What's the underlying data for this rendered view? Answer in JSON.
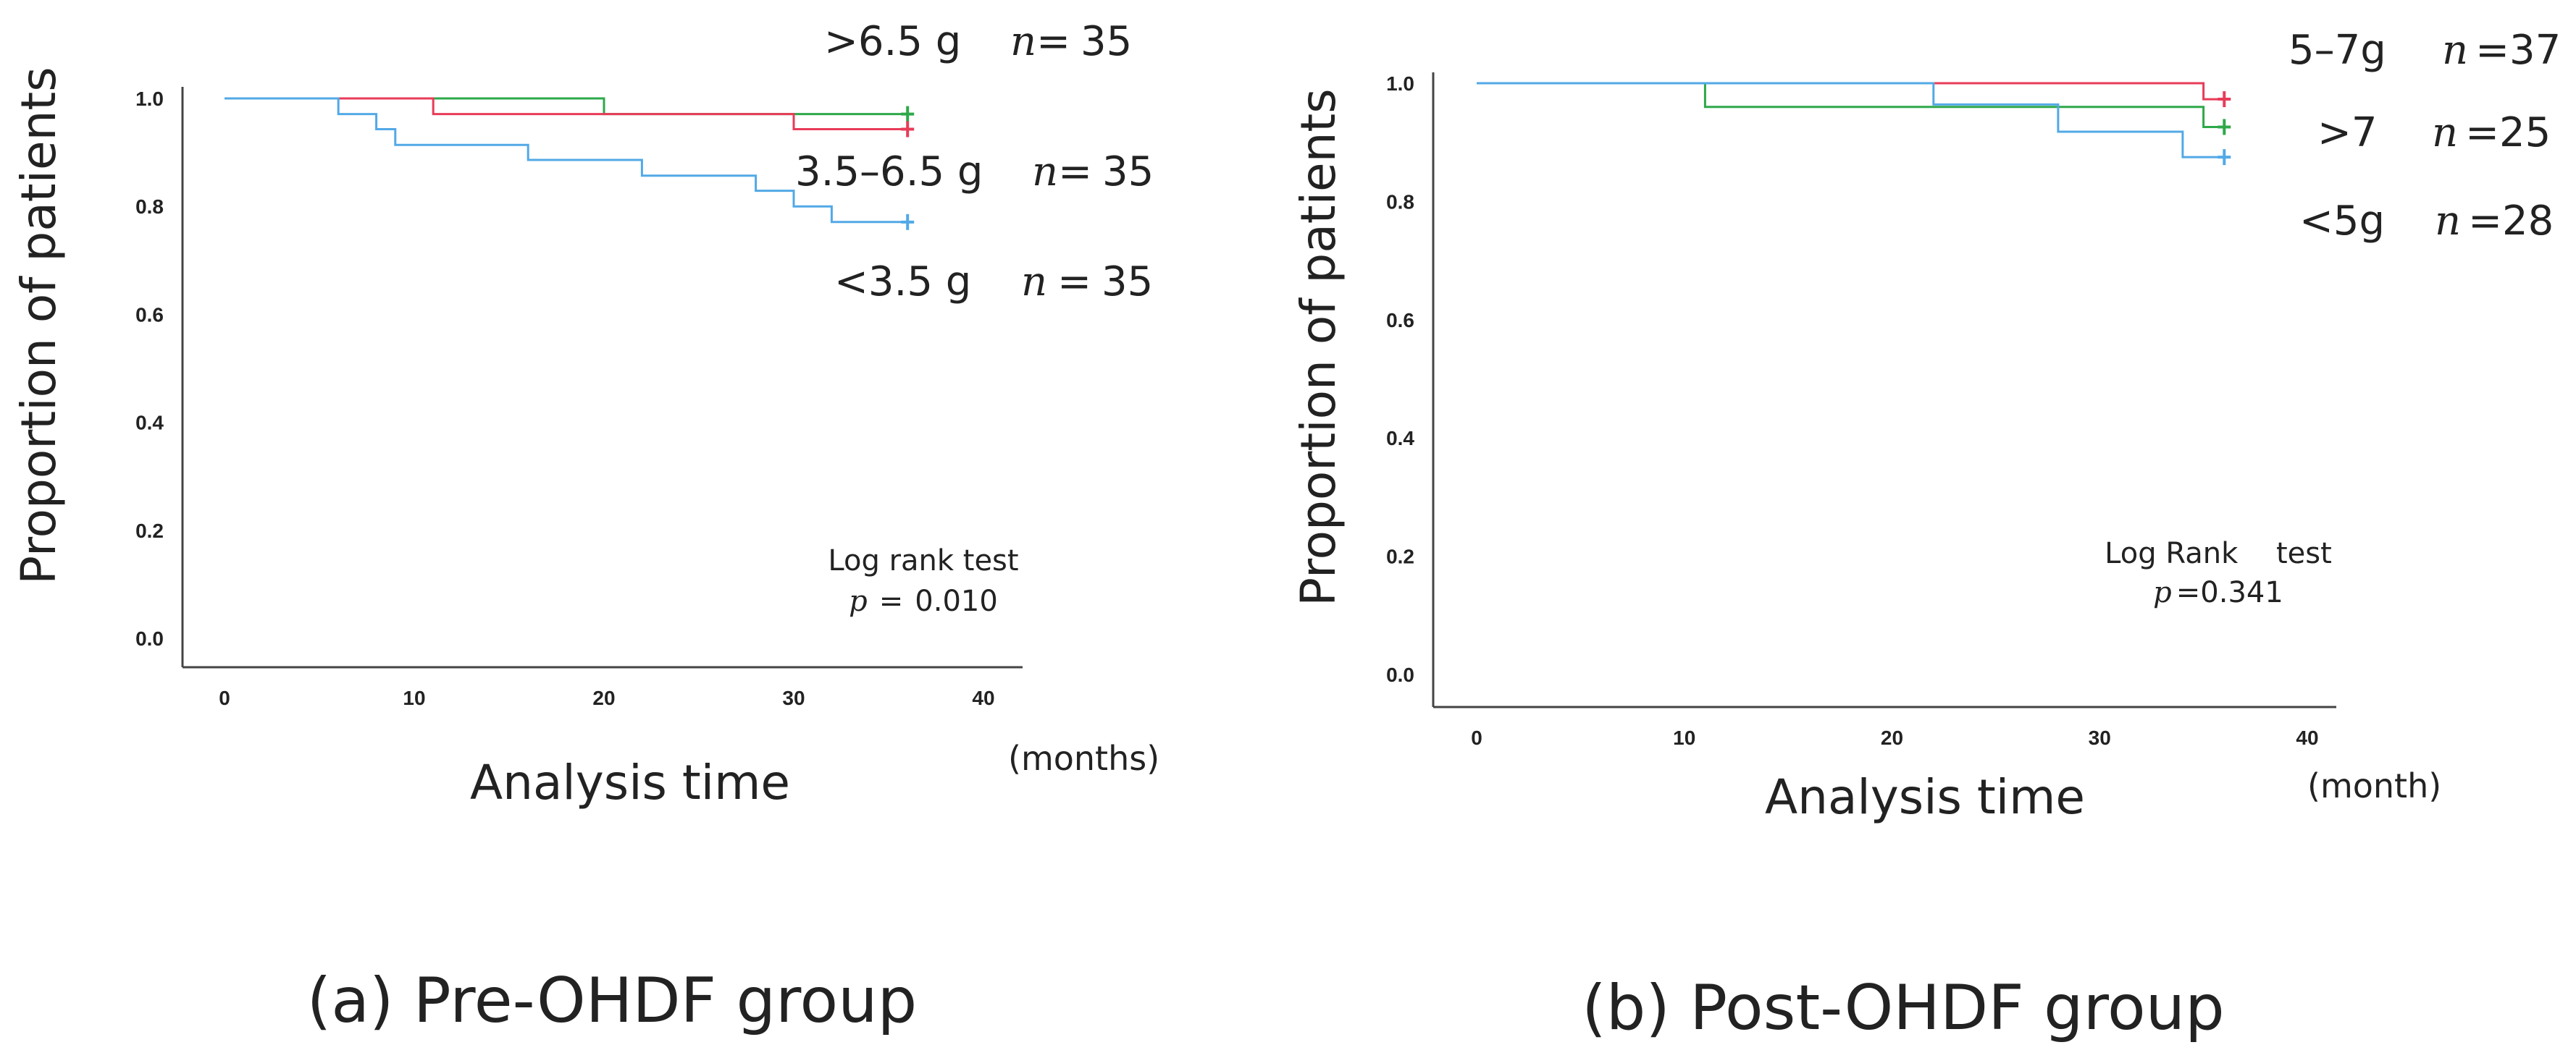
{
  "chart_data": [
    {
      "type": "line",
      "subtype": "kaplan-meier",
      "caption": "(a) Pre-OHDF group",
      "ylabel": "Proportion of patients",
      "xlabel": "Analysis time",
      "x_unit": "(months)",
      "xlim": [
        0,
        40
      ],
      "ylim": [
        0.0,
        1.0
      ],
      "xticks": [
        "0",
        "10",
        "20",
        "30",
        "40"
      ],
      "yticks": [
        "0.0",
        "0.2",
        "0.4",
        "0.6",
        "0.8",
        "1.0"
      ],
      "grid": false,
      "series": [
        {
          "name": ">6.5 g",
          "n": "35",
          "color": "#2ea84a",
          "x": [
            0,
            20,
            20,
            36
          ],
          "y": [
            1.0,
            1.0,
            0.971,
            0.971
          ],
          "censor": [
            36,
            0.971
          ]
        },
        {
          "name": "3.5–6.5 g",
          "n": "35",
          "color": "#e83b58",
          "x": [
            0,
            11,
            11,
            30,
            30,
            36
          ],
          "y": [
            1.0,
            1.0,
            0.971,
            0.971,
            0.943,
            0.943
          ],
          "censor": [
            36,
            0.943
          ]
        },
        {
          "name": "<3.5 g",
          "n": "35",
          "color": "#52a9e6",
          "x": [
            0,
            6,
            6,
            8,
            8,
            9,
            9,
            16,
            16,
            22,
            22,
            28,
            28,
            30,
            30,
            32,
            32,
            36
          ],
          "y": [
            1.0,
            1.0,
            0.971,
            0.971,
            0.943,
            0.943,
            0.914,
            0.914,
            0.886,
            0.886,
            0.857,
            0.857,
            0.829,
            0.829,
            0.8,
            0.8,
            0.771,
            0.771
          ],
          "censor": [
            36,
            0.771
          ]
        }
      ],
      "legend": [
        {
          "label": ">6.5 g",
          "n_symbol": "n",
          "eq": "=",
          "n": "35"
        },
        {
          "label": "3.5–6.5 g",
          "n_symbol": "n",
          "eq": "=",
          "n": "35"
        },
        {
          "label": "<3.5 g",
          "n_symbol": "n",
          "eq": "=",
          "n": "35"
        }
      ],
      "test": {
        "title": "Log rank test",
        "p_symbol": "p",
        "p_eq": "=",
        "p_value": "0.010"
      }
    },
    {
      "type": "line",
      "subtype": "kaplan-meier",
      "caption": "(b) Post-OHDF group",
      "ylabel": "Proportion of patients",
      "xlabel": "Analysis time",
      "x_unit": "(month)",
      "xlim": [
        0,
        40
      ],
      "ylim": [
        0.0,
        1.0
      ],
      "xticks": [
        "0",
        "10",
        "20",
        "30",
        "40"
      ],
      "yticks": [
        "0.0",
        "0.2",
        "0.4",
        "0.6",
        "0.8",
        "1.0"
      ],
      "grid": false,
      "series": [
        {
          "name": "5–7g",
          "n": "37",
          "color": "#e83b58",
          "x": [
            0,
            35,
            35,
            36
          ],
          "y": [
            1.0,
            1.0,
            0.973,
            0.973
          ],
          "censor": [
            36,
            0.973
          ]
        },
        {
          "name": ">7",
          "n": "25",
          "color": "#2ea84a",
          "x": [
            0,
            11,
            11,
            35,
            35,
            36
          ],
          "y": [
            1.0,
            1.0,
            0.96,
            0.96,
            0.926,
            0.926
          ],
          "censor": [
            36,
            0.926
          ]
        },
        {
          "name": "<5g",
          "n": "28",
          "color": "#52a9e6",
          "x": [
            0,
            22,
            22,
            28,
            28,
            34,
            34,
            36
          ],
          "y": [
            1.0,
            1.0,
            0.964,
            0.964,
            0.918,
            0.918,
            0.875,
            0.875
          ],
          "censor": [
            36,
            0.875
          ]
        }
      ],
      "legend": [
        {
          "label": "5–7g",
          "n_symbol": "n",
          "eq": "=",
          "n": "37"
        },
        {
          "label": ">7",
          "n_symbol": "n",
          "eq": "=",
          "n": "25"
        },
        {
          "label": "<5g",
          "n_symbol": "n",
          "eq": "=",
          "n": "28"
        }
      ],
      "test": {
        "title": "Log Rank  test",
        "p_symbol": "p",
        "p_eq": "=",
        "p_value": "0.341"
      }
    }
  ]
}
